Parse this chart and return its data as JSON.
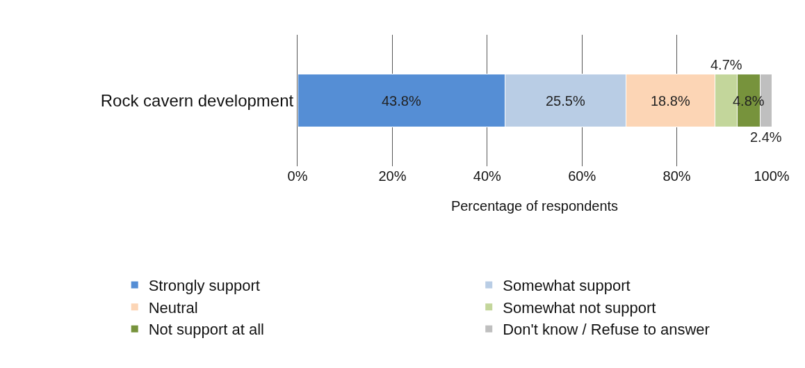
{
  "chart_data": {
    "type": "bar",
    "orientation": "horizontal",
    "stacked": true,
    "categories": [
      "Rock cavern development"
    ],
    "series": [
      {
        "name": "Strongly support",
        "color": "#558ed5",
        "values": [
          43.8
        ],
        "value_labels": [
          "43.8%"
        ]
      },
      {
        "name": "Somewhat support",
        "color": "#b9cde5",
        "values": [
          25.5
        ],
        "value_labels": [
          "25.5%"
        ]
      },
      {
        "name": "Neutral",
        "color": "#fcd5b5",
        "values": [
          18.8
        ],
        "value_labels": [
          "18.8%"
        ]
      },
      {
        "name": "Somewhat not support",
        "color": "#c3d69b",
        "values": [
          4.7
        ],
        "value_labels": [
          "4.7%"
        ]
      },
      {
        "name": "Not support at all",
        "color": "#77933c",
        "values": [
          4.8
        ],
        "value_labels": [
          "4.8%"
        ]
      },
      {
        "name": "Don't know / Refuse to answer",
        "color": "#bfbfbf",
        "values": [
          2.4
        ],
        "value_labels": [
          "2.4%"
        ]
      }
    ],
    "xlim": [
      0,
      100
    ],
    "xticks": [
      {
        "value": 0,
        "label": "0%"
      },
      {
        "value": 20,
        "label": "20%"
      },
      {
        "value": 40,
        "label": "40%"
      },
      {
        "value": 60,
        "label": "60%"
      },
      {
        "value": 80,
        "label": "80%"
      },
      {
        "value": 100,
        "label": "100%"
      }
    ],
    "xlabel": "Percentage of respondents",
    "grid": "x",
    "legend": "bottom"
  }
}
